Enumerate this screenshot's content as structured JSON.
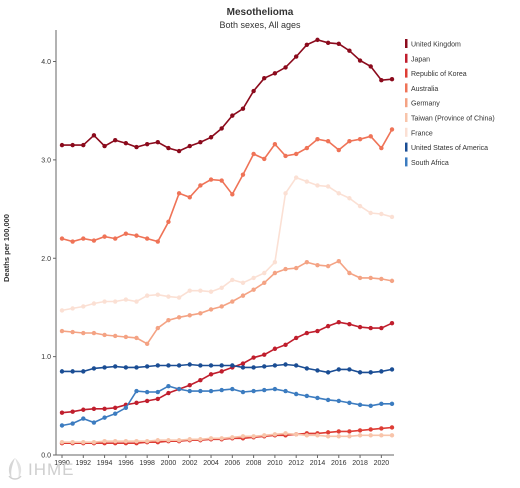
{
  "chart_data": {
    "type": "line",
    "title": "Mesothelioma",
    "subtitle": "Both sexes, All ages",
    "ylabel": "Deaths per 100,000",
    "xlabel": "",
    "xlim": [
      1990,
      2021
    ],
    "ylim": [
      0,
      4.3
    ],
    "yticks": [
      0.0,
      1.0,
      2.0,
      3.0,
      4.0
    ],
    "ytick_labels": [
      "0.0",
      "1.0",
      "2.0",
      "3.0",
      "4.0"
    ],
    "xticks": [
      1990,
      1992,
      1994,
      1996,
      1998,
      2000,
      2002,
      2004,
      2006,
      2008,
      2010,
      2012,
      2014,
      2016,
      2018,
      2020
    ],
    "grid": false,
    "legend_position": "right",
    "x": [
      1990,
      1991,
      1992,
      1993,
      1994,
      1995,
      1996,
      1997,
      1998,
      1999,
      2000,
      2001,
      2002,
      2003,
      2004,
      2005,
      2006,
      2007,
      2008,
      2009,
      2010,
      2011,
      2012,
      2013,
      2014,
      2015,
      2016,
      2017,
      2018,
      2019,
      2020,
      2021
    ],
    "series": [
      {
        "name": "United Kingdom",
        "color": "#8b0a1c",
        "values": [
          3.15,
          3.15,
          3.15,
          3.25,
          3.14,
          3.2,
          3.17,
          3.13,
          3.16,
          3.18,
          3.12,
          3.09,
          3.14,
          3.18,
          3.23,
          3.32,
          3.45,
          3.52,
          3.7,
          3.83,
          3.88,
          3.94,
          4.05,
          4.17,
          4.22,
          4.19,
          4.18,
          4.11,
          4.01,
          3.95,
          3.81,
          3.82
        ]
      },
      {
        "name": "Japan",
        "color": "#c01e2d",
        "values": [
          0.43,
          0.44,
          0.46,
          0.47,
          0.47,
          0.48,
          0.51,
          0.53,
          0.55,
          0.57,
          0.63,
          0.67,
          0.71,
          0.76,
          0.82,
          0.85,
          0.89,
          0.93,
          0.99,
          1.02,
          1.08,
          1.12,
          1.19,
          1.24,
          1.26,
          1.31,
          1.35,
          1.33,
          1.3,
          1.29,
          1.29,
          1.34
        ]
      },
      {
        "name": "Republic of Korea",
        "color": "#de3d35",
        "values": [
          0.12,
          0.12,
          0.12,
          0.12,
          0.12,
          0.12,
          0.12,
          0.12,
          0.13,
          0.13,
          0.14,
          0.14,
          0.15,
          0.15,
          0.16,
          0.16,
          0.17,
          0.17,
          0.18,
          0.19,
          0.2,
          0.2,
          0.21,
          0.22,
          0.22,
          0.23,
          0.24,
          0.24,
          0.25,
          0.26,
          0.27,
          0.28
        ]
      },
      {
        "name": "Australia",
        "color": "#ef7357",
        "values": [
          2.2,
          2.17,
          2.2,
          2.18,
          2.22,
          2.2,
          2.25,
          2.23,
          2.2,
          2.17,
          2.37,
          2.66,
          2.62,
          2.74,
          2.8,
          2.79,
          2.65,
          2.85,
          3.06,
          3.01,
          3.16,
          3.04,
          3.06,
          3.12,
          3.21,
          3.19,
          3.1,
          3.19,
          3.21,
          3.24,
          3.12,
          3.31
        ]
      },
      {
        "name": "Germany",
        "color": "#f4a384",
        "values": [
          1.26,
          1.25,
          1.24,
          1.24,
          1.22,
          1.21,
          1.2,
          1.19,
          1.13,
          1.29,
          1.37,
          1.4,
          1.42,
          1.44,
          1.48,
          1.51,
          1.56,
          1.62,
          1.68,
          1.75,
          1.85,
          1.89,
          1.9,
          1.96,
          1.93,
          1.92,
          1.97,
          1.85,
          1.8,
          1.8,
          1.79,
          1.77
        ]
      },
      {
        "name": "Taiwan (Province of China)",
        "color": "#f8c4aa",
        "values": [
          0.13,
          0.13,
          0.13,
          0.13,
          0.14,
          0.14,
          0.14,
          0.14,
          0.14,
          0.15,
          0.15,
          0.15,
          0.16,
          0.16,
          0.17,
          0.17,
          0.18,
          0.19,
          0.19,
          0.2,
          0.21,
          0.22,
          0.21,
          0.2,
          0.2,
          0.19,
          0.19,
          0.19,
          0.2,
          0.2,
          0.2,
          0.2
        ]
      },
      {
        "name": "France",
        "color": "#fbe0d4",
        "values": [
          1.47,
          1.49,
          1.51,
          1.54,
          1.56,
          1.56,
          1.58,
          1.56,
          1.62,
          1.63,
          1.61,
          1.6,
          1.67,
          1.67,
          1.66,
          1.7,
          1.78,
          1.75,
          1.8,
          1.85,
          1.96,
          2.66,
          2.82,
          2.78,
          2.74,
          2.73,
          2.66,
          2.61,
          2.53,
          2.46,
          2.45,
          2.42
        ]
      },
      {
        "name": "United States of America",
        "color": "#1a4d94",
        "values": [
          0.85,
          0.85,
          0.85,
          0.88,
          0.89,
          0.9,
          0.89,
          0.89,
          0.9,
          0.91,
          0.91,
          0.91,
          0.92,
          0.91,
          0.91,
          0.91,
          0.91,
          0.89,
          0.89,
          0.9,
          0.91,
          0.92,
          0.91,
          0.88,
          0.86,
          0.84,
          0.87,
          0.87,
          0.84,
          0.84,
          0.85,
          0.87
        ]
      },
      {
        "name": "South Africa",
        "color": "#3c7cc0",
        "values": [
          0.3,
          0.32,
          0.37,
          0.33,
          0.38,
          0.42,
          0.48,
          0.65,
          0.64,
          0.64,
          0.7,
          0.67,
          0.65,
          0.65,
          0.65,
          0.66,
          0.67,
          0.64,
          0.65,
          0.66,
          0.67,
          0.65,
          0.62,
          0.6,
          0.58,
          0.56,
          0.55,
          0.53,
          0.51,
          0.5,
          0.52,
          0.52
        ]
      }
    ]
  },
  "watermark": {
    "text": "IHME"
  }
}
